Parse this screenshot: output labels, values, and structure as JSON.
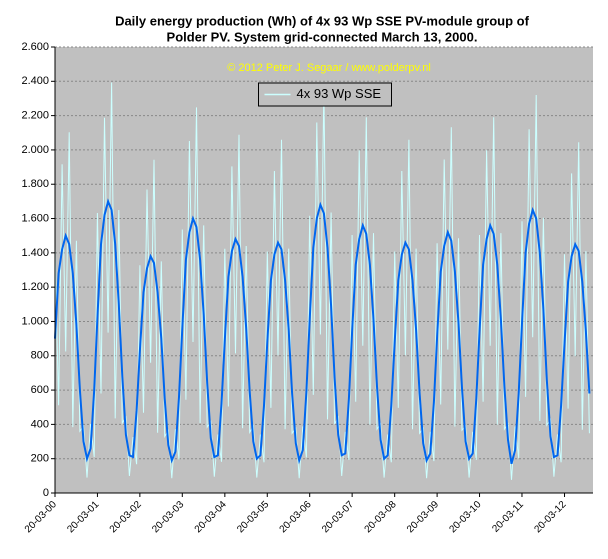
{
  "chart_data": {
    "type": "line",
    "title": "Daily energy production (Wh) of 4x 93 Wp SSE PV-module group of",
    "subtitle": "Polder PV. System grid-connected March 13, 2000.",
    "annotation": "© 2012 Peter J. Segaar / www.polderpv.nl",
    "legend_position": "top",
    "grid": true,
    "background": "#c0c0c0",
    "ylim": [
      0,
      2600
    ],
    "yticks": [
      0,
      200,
      400,
      600,
      800,
      {
        "value": 1000,
        "label": "1.000"
      },
      {
        "value": 1200,
        "label": "1.200"
      },
      {
        "value": 1400,
        "label": "1.400"
      },
      {
        "value": 1600,
        "label": "1.600"
      },
      {
        "value": 1800,
        "label": "1.800"
      },
      {
        "value": 2000,
        "label": "2.000"
      },
      {
        "value": 2200,
        "label": "2.200"
      },
      {
        "value": 2400,
        "label": "2.400"
      },
      {
        "value": 2600,
        "label": "2.600"
      }
    ],
    "xlim": [
      "2000-03-20",
      "2012-11-20"
    ],
    "xticks": [
      {
        "value": "2000-03-20",
        "label": "20-03-00"
      },
      {
        "value": "2001-03-20",
        "label": "20-03-01"
      },
      {
        "value": "2002-03-20",
        "label": "20-03-02"
      },
      {
        "value": "2003-03-20",
        "label": "20-03-03"
      },
      {
        "value": "2004-03-20",
        "label": "20-03-04"
      },
      {
        "value": "2005-03-20",
        "label": "20-03-05"
      },
      {
        "value": "2006-03-20",
        "label": "20-03-06"
      },
      {
        "value": "2007-03-20",
        "label": "20-03-07"
      },
      {
        "value": "2008-03-20",
        "label": "20-03-08"
      },
      {
        "value": "2009-03-20",
        "label": "20-03-09"
      },
      {
        "value": "2010-03-20",
        "label": "20-03-10"
      },
      {
        "value": "2011-03-20",
        "label": "20-03-11"
      },
      {
        "value": "2012-03-20",
        "label": "20-03-12"
      }
    ],
    "x": [
      "2000-03-20",
      "2000-04-20",
      "2000-05-20",
      "2000-06-20",
      "2000-07-20",
      "2000-08-20",
      "2000-09-20",
      "2000-10-20",
      "2000-11-20",
      "2000-12-20",
      "2001-01-20",
      "2001-02-20",
      "2001-03-20",
      "2001-04-20",
      "2001-05-20",
      "2001-06-20",
      "2001-07-20",
      "2001-08-20",
      "2001-09-20",
      "2001-10-20",
      "2001-11-20",
      "2001-12-20",
      "2002-01-20",
      "2002-02-20",
      "2002-03-20",
      "2002-04-20",
      "2002-05-20",
      "2002-06-20",
      "2002-07-20",
      "2002-08-20",
      "2002-09-20",
      "2002-10-20",
      "2002-11-20",
      "2002-12-20",
      "2003-01-20",
      "2003-02-20",
      "2003-03-20",
      "2003-04-20",
      "2003-05-20",
      "2003-06-20",
      "2003-07-20",
      "2003-08-20",
      "2003-09-20",
      "2003-10-20",
      "2003-11-20",
      "2003-12-20",
      "2004-01-20",
      "2004-02-20",
      "2004-03-20",
      "2004-04-20",
      "2004-05-20",
      "2004-06-20",
      "2004-07-20",
      "2004-08-20",
      "2004-09-20",
      "2004-10-20",
      "2004-11-20",
      "2004-12-20",
      "2005-01-20",
      "2005-02-20",
      "2005-03-20",
      "2005-04-20",
      "2005-05-20",
      "2005-06-20",
      "2005-07-20",
      "2005-08-20",
      "2005-09-20",
      "2005-10-20",
      "2005-11-20",
      "2005-12-20",
      "2006-01-20",
      "2006-02-20",
      "2006-03-20",
      "2006-04-20",
      "2006-05-20",
      "2006-06-20",
      "2006-07-20",
      "2006-08-20",
      "2006-09-20",
      "2006-10-20",
      "2006-11-20",
      "2006-12-20",
      "2007-01-20",
      "2007-02-20",
      "2007-03-20",
      "2007-04-20",
      "2007-05-20",
      "2007-06-20",
      "2007-07-20",
      "2007-08-20",
      "2007-09-20",
      "2007-10-20",
      "2007-11-20",
      "2007-12-20",
      "2008-01-20",
      "2008-02-20",
      "2008-03-20",
      "2008-04-20",
      "2008-05-20",
      "2008-06-20",
      "2008-07-20",
      "2008-08-20",
      "2008-09-20",
      "2008-10-20",
      "2008-11-20",
      "2008-12-20",
      "2009-01-20",
      "2009-02-20",
      "2009-03-20",
      "2009-04-20",
      "2009-05-20",
      "2009-06-20",
      "2009-07-20",
      "2009-08-20",
      "2009-09-20",
      "2009-10-20",
      "2009-11-20",
      "2009-12-20",
      "2010-01-20",
      "2010-02-20",
      "2010-03-20",
      "2010-04-20",
      "2010-05-20",
      "2010-06-20",
      "2010-07-20",
      "2010-08-20",
      "2010-09-20",
      "2010-10-20",
      "2010-11-20",
      "2010-12-20",
      "2011-01-20",
      "2011-02-20",
      "2011-03-20",
      "2011-04-20",
      "2011-05-20",
      "2011-06-20",
      "2011-07-20",
      "2011-08-20",
      "2011-09-20",
      "2011-10-20",
      "2011-11-20",
      "2011-12-20",
      "2012-01-20",
      "2012-02-20",
      "2012-03-20",
      "2012-04-20",
      "2012-05-20",
      "2012-06-20",
      "2012-07-20",
      "2012-08-20",
      "2012-09-20",
      "2012-10-20"
    ],
    "series": [
      {
        "name": "4x 93 Wp SSE",
        "color": "#ccffff",
        "values": [
          1440,
          512,
          1917,
          825,
          2103,
          384,
          1470,
          360,
          390,
          90,
          403,
          210,
          1632,
          580,
          2187,
          935,
          2393,
          435,
          1650,
          408,
          442,
          99,
          326,
          168,
          1328,
          468,
          1769,
          759,
          1943,
          351,
          1350,
          330,
          364,
          86,
          372,
          196,
          1536,
          544,
          2052,
          880,
          2248,
          408,
          1560,
          384,
          416,
          95,
          341,
          182,
          1424,
          504,
          1904,
          814,
          2088,
          378,
          1440,
          354,
          390,
          90,
          341,
          179,
          1408,
          496,
          1877,
          803,
          2059,
          372,
          1425,
          348,
          377,
          86,
          388,
          207,
          1616,
          572,
          2160,
          924,
          2364,
          429,
          1635,
          402,
          442,
          99,
          357,
          193,
          1504,
          532,
          1998,
          858,
          2190,
          399,
          1515,
          372,
          403,
          90,
          341,
          179,
          1408,
          496,
          1877,
          803,
          2059,
          372,
          1425,
          348,
          377,
          86,
          357,
          186,
          1456,
          516,
          1944,
          836,
          2132,
          387,
          1485,
          366,
          390,
          90,
          357,
          193,
          1504,
          532,
          1998,
          858,
          2190,
          399,
          1515,
          372,
          403,
          77,
          388,
          203,
          1584,
          560,
          2120,
          908,
          2320,
          420,
          1605,
          396,
          429,
          95,
          341,
          179,
          1392,
          492,
          1863,
          798,
          2045,
          369,
          1410,
          348
        ]
      },
      {
        "color": "#0066ee",
        "values": [
          900,
          1280,
          1420,
          1500,
          1450,
          1280,
          980,
          600,
          300,
          200,
          260,
          600,
          1020,
          1450,
          1620,
          1700,
          1650,
          1450,
          1100,
          680,
          340,
          220,
          210,
          480,
          830,
          1170,
          1310,
          1380,
          1340,
          1170,
          900,
          550,
          280,
          190,
          240,
          560,
          960,
          1360,
          1520,
          1600,
          1550,
          1360,
          1040,
          640,
          320,
          210,
          220,
          520,
          890,
          1260,
          1410,
          1480,
          1440,
          1260,
          960,
          590,
          300,
          200,
          220,
          510,
          880,
          1240,
          1390,
          1460,
          1420,
          1240,
          950,
          580,
          290,
          190,
          250,
          590,
          1010,
          1430,
          1600,
          1680,
          1630,
          1430,
          1090,
          670,
          340,
          220,
          230,
          550,
          940,
          1330,
          1480,
          1560,
          1510,
          1330,
          1010,
          620,
          310,
          200,
          220,
          510,
          880,
          1240,
          1390,
          1460,
          1420,
          1240,
          950,
          580,
          290,
          190,
          230,
          530,
          910,
          1290,
          1440,
          1520,
          1470,
          1290,
          990,
          610,
          300,
          200,
          230,
          550,
          940,
          1330,
          1480,
          1560,
          1510,
          1330,
          1010,
          620,
          310,
          170,
          250,
          580,
          990,
          1400,
          1570,
          1650,
          1600,
          1400,
          1070,
          660,
          330,
          210,
          220,
          510,
          870,
          1230,
          1380,
          1450,
          1410,
          1230,
          940,
          580
        ]
      }
    ]
  }
}
